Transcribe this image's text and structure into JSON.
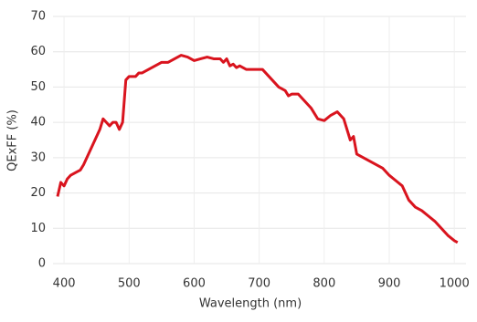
{
  "chart_data": {
    "type": "line",
    "x_label": "Wavelength (nm)",
    "y_label": "QExFF (%)",
    "xlim": [
      383,
      1018
    ],
    "ylim": [
      0,
      70
    ],
    "xticks": [
      400,
      500,
      600,
      700,
      800,
      900,
      1000
    ],
    "yticks": [
      0,
      10,
      20,
      30,
      40,
      50,
      60,
      70
    ],
    "grid": true,
    "series": [
      {
        "name": "QExFF",
        "color": "#d9141e",
        "x": [
          390,
          395,
          400,
          405,
          410,
          420,
          425,
          430,
          440,
          450,
          455,
          460,
          465,
          470,
          475,
          480,
          485,
          490,
          495,
          500,
          510,
          515,
          520,
          530,
          540,
          550,
          560,
          570,
          580,
          590,
          600,
          610,
          620,
          630,
          640,
          645,
          650,
          655,
          660,
          665,
          670,
          680,
          690,
          700,
          705,
          710,
          720,
          730,
          740,
          745,
          750,
          760,
          770,
          780,
          790,
          800,
          810,
          820,
          830,
          840,
          845,
          850,
          860,
          870,
          880,
          890,
          900,
          910,
          920,
          930,
          940,
          950,
          960,
          970,
          980,
          990,
          1000,
          1005
        ],
        "values": [
          19,
          23,
          22,
          24,
          25,
          26,
          26.5,
          28,
          32,
          36,
          38,
          41,
          40,
          39,
          40,
          40,
          38,
          40,
          52,
          53,
          53,
          54,
          54,
          55,
          56,
          57,
          57,
          58,
          59,
          58.5,
          57.5,
          58,
          58.5,
          58,
          58,
          57,
          58,
          56,
          56.5,
          55.5,
          56,
          55,
          55,
          55,
          55,
          54,
          52,
          50,
          49,
          47.5,
          48,
          48,
          46,
          44,
          41,
          40.5,
          42,
          43,
          41,
          35,
          36,
          31,
          30,
          29,
          28,
          27,
          25,
          23.5,
          22,
          18,
          16,
          15,
          13.5,
          12,
          10,
          8,
          6.5,
          6
        ]
      }
    ]
  }
}
